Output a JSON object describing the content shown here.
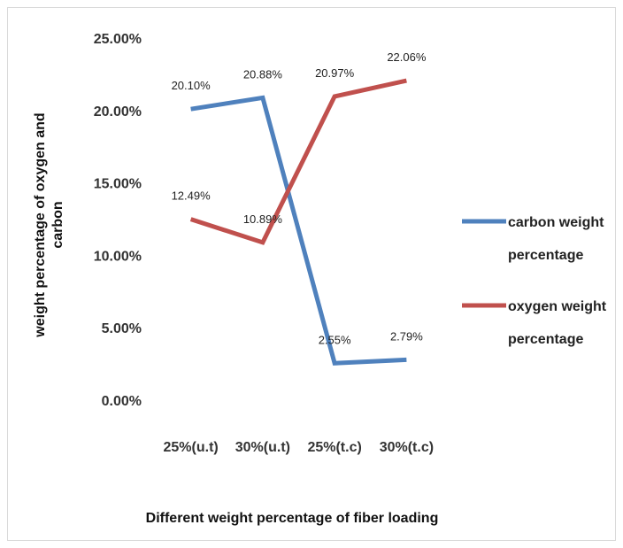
{
  "chart_data": {
    "type": "line",
    "categories": [
      "25%(u.t)",
      "30%(u.t)",
      "25%(t.c)",
      "30%(t.c)"
    ],
    "series": [
      {
        "name": "carbon weight percentage",
        "name_lines": [
          "carbon weight",
          "percentage"
        ],
        "color": "#4f81bd",
        "values": [
          20.1,
          20.88,
          2.55,
          2.79
        ],
        "labels": [
          "20.10%",
          "20.88%",
          "2.55%",
          "2.79%"
        ]
      },
      {
        "name": "oxygen weight percentage",
        "name_lines": [
          "oxygen weight",
          "percentage"
        ],
        "color": "#c0504d",
        "values": [
          12.49,
          10.89,
          20.97,
          22.06
        ],
        "labels": [
          "12.49%",
          "10.89%",
          "20.97%",
          "22.06%"
        ]
      }
    ],
    "xlabel": "Different weight percentage of fiber loading",
    "ylabel_lines": [
      "weight percentage of oxygen and",
      "carbon"
    ],
    "ylim": [
      0,
      25
    ],
    "yticks": [
      "0.00%",
      "5.00%",
      "10.00%",
      "15.00%",
      "20.00%",
      "25.00%"
    ],
    "grid": false,
    "legend": "right"
  }
}
